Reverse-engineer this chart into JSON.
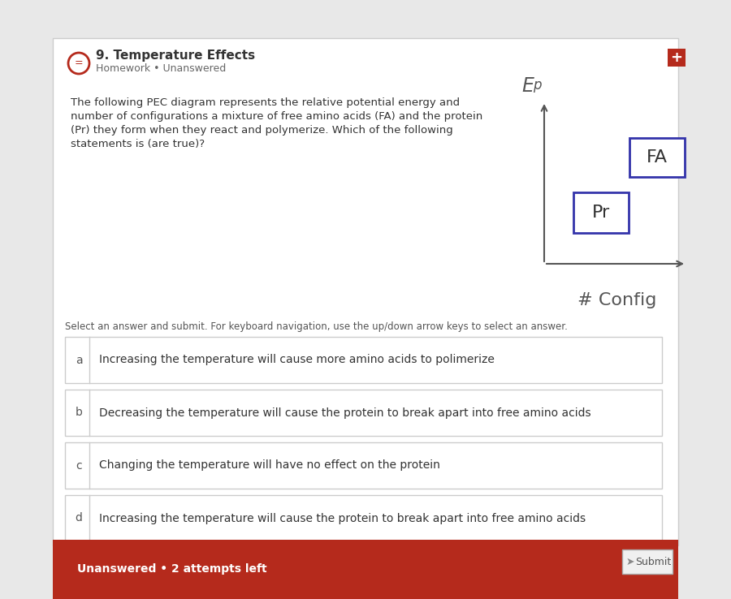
{
  "outer_bg": "#e8e8e8",
  "card_bg": "#ffffff",
  "card_border": "#cccccc",
  "title": "9. Temperature Effects",
  "subtitle": "Homework • Unanswered",
  "question_text_lines": [
    "The following PEC diagram represents the relative potential energy and",
    "number of configurations a mixture of free amino acids (FA) and the protein",
    "(Pr) they form when they react and polymerize. Which of the following",
    "statements is (are true)?"
  ],
  "instruction": "Select an answer and submit. For keyboard navigation, use the up/down arrow keys to select an answer.",
  "options": [
    {
      "label": "a",
      "text": "Increasing the temperature will cause more amino acids to polimerize"
    },
    {
      "label": "b",
      "text": "Decreasing the temperature will cause the protein to break apart into free amino acids"
    },
    {
      "label": "c",
      "text": "Changing the temperature will have no effect on the protein"
    },
    {
      "label": "d",
      "text": "Increasing the temperature will cause the protein to break apart into free amino acids"
    }
  ],
  "footer_bg": "#b52a1c",
  "footer_text": "Unanswered • 2 attempts left",
  "submit_text": "Submit",
  "option_border": "#cccccc",
  "header_icon_color": "#b52a1c",
  "axis_color": "#555555",
  "fa_box_color": "#3333aa",
  "pr_box_color": "#3333aa",
  "text_color": "#333333",
  "subtitle_color": "#666666"
}
